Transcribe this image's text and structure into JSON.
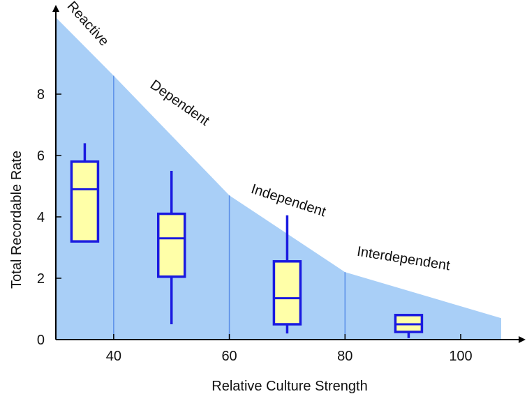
{
  "chart_data": {
    "type": "box",
    "xlabel": "Relative Culture Strength",
    "ylabel": "Total Recordable Rate",
    "xlim": [
      30,
      107
    ],
    "ylim": [
      0,
      10.5
    ],
    "x_ticks": [
      40,
      60,
      80,
      100
    ],
    "y_ticks": [
      0,
      2,
      4,
      6,
      8
    ],
    "grid": false,
    "area": {
      "x": [
        30,
        40,
        60,
        80,
        107
      ],
      "y": [
        11.2,
        8.6,
        4.7,
        2.2,
        0.7
      ],
      "fill_color": "#a9cff7"
    },
    "stage_boundaries": [
      40,
      60,
      80
    ],
    "stages": [
      {
        "label": "Reactive",
        "x": 35,
        "y": 10.2
      },
      {
        "label": "Dependent",
        "x": 51,
        "y": 7.6
      },
      {
        "label": "Independent",
        "x": 70,
        "y": 4.4
      },
      {
        "label": "Interdependent",
        "x": 90,
        "y": 2.5
      }
    ],
    "boxes": [
      {
        "x": 35,
        "whisker_low": 3.2,
        "q1": 3.2,
        "median": 4.9,
        "q3": 5.8,
        "whisker_high": 6.4
      },
      {
        "x": 50,
        "whisker_low": 0.5,
        "q1": 2.05,
        "median": 3.3,
        "q3": 4.1,
        "whisker_high": 5.5
      },
      {
        "x": 70,
        "whisker_low": 0.2,
        "q1": 0.5,
        "median": 1.35,
        "q3": 2.55,
        "whisker_high": 4.05
      },
      {
        "x": 91,
        "whisker_low": 0.05,
        "q1": 0.25,
        "median": 0.5,
        "q3": 0.8,
        "whisker_high": 0.8
      }
    ],
    "colors": {
      "box_fill": "#ffffa8",
      "box_stroke": "#1a1ae0",
      "divider": "#5a8fe8",
      "axis": "#000000"
    }
  }
}
